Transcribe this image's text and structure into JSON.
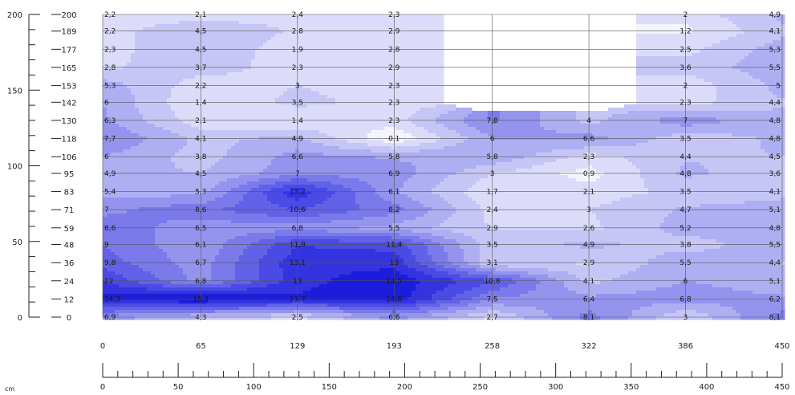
{
  "chart_data": {
    "type": "heatmap",
    "title": "",
    "xlabel": "cm",
    "ylabel": "",
    "columns": [
      0,
      65,
      129,
      193,
      258,
      322,
      386,
      450
    ],
    "rows": [
      200,
      189,
      177,
      165,
      153,
      142,
      130,
      118,
      106,
      95,
      83,
      71,
      59,
      48,
      36,
      24,
      12,
      0
    ],
    "values": [
      [
        "2,2",
        "2,1",
        "2,4",
        "2,3",
        "",
        "",
        "2",
        "4,9"
      ],
      [
        "2,2",
        "4,5",
        "2,8",
        "2,9",
        "",
        "",
        "1,2",
        "4,1"
      ],
      [
        "2,3",
        "4,5",
        "1,9",
        "2,8",
        "",
        "",
        "2,5",
        "5,3"
      ],
      [
        "2,8",
        "3,7",
        "2,3",
        "2,9",
        "",
        "",
        "3,6",
        "5,5"
      ],
      [
        "5,3",
        "2,2",
        "3",
        "2,3",
        "",
        "",
        "2",
        "5"
      ],
      [
        "6",
        "1,4",
        "3,5",
        "2,3",
        "",
        "",
        "2,3",
        "4,4"
      ],
      [
        "6,3",
        "2,1",
        "1,4",
        "2,3",
        "7,8",
        "4",
        "7",
        "4,8"
      ],
      [
        "7,7",
        "4,1",
        "4,9",
        "0,1",
        "6",
        "6,6",
        "3,5",
        "4,8"
      ],
      [
        "6",
        "3,8",
        "6,6",
        "5,8",
        "5,8",
        "2,3",
        "4,4",
        "4,5"
      ],
      [
        "4,9",
        "4,5",
        "7",
        "6,9",
        "3",
        "0,9",
        "4,8",
        "3,6"
      ],
      [
        "5,4",
        "5,3",
        "13,2",
        "6,1",
        "1,7",
        "2,1",
        "3,5",
        "4,1"
      ],
      [
        "7",
        "8,6",
        "10,6",
        "8,2",
        "2,4",
        "3",
        "4,7",
        "5,1"
      ],
      [
        "8,6",
        "6,5",
        "6,8",
        "5,5",
        "2,9",
        "2,6",
        "5,2",
        "4,8"
      ],
      [
        "9",
        "6,1",
        "11,9",
        "11,4",
        "3,5",
        "4,9",
        "3,8",
        "5,5"
      ],
      [
        "9,8",
        "6,7",
        "13,1",
        "13",
        "3,1",
        "2,9",
        "5,5",
        "4,4"
      ],
      [
        "12",
        "6,8",
        "13",
        "14,5",
        "10,8",
        "4,1",
        "6",
        "5,1"
      ],
      [
        "14,3",
        "15,4",
        "13,7",
        "14,6",
        "7,5",
        "6,4",
        "6,8",
        "6,2"
      ],
      [
        "6,9",
        "4,3",
        "2,5",
        "6,6",
        "2,7",
        "8,1",
        "3",
        "8,1"
      ]
    ],
    "y_axis": {
      "ticks": [
        0,
        50,
        100,
        150,
        200
      ],
      "range": [
        0,
        200
      ]
    },
    "x_axis": {
      "ticks": [
        0,
        50,
        100,
        150,
        200,
        250,
        300,
        350,
        400,
        450
      ],
      "range": [
        0,
        450
      ]
    },
    "color_scale": {
      "low": "#ffffff",
      "high": "#1a1aee"
    },
    "grid": true
  }
}
